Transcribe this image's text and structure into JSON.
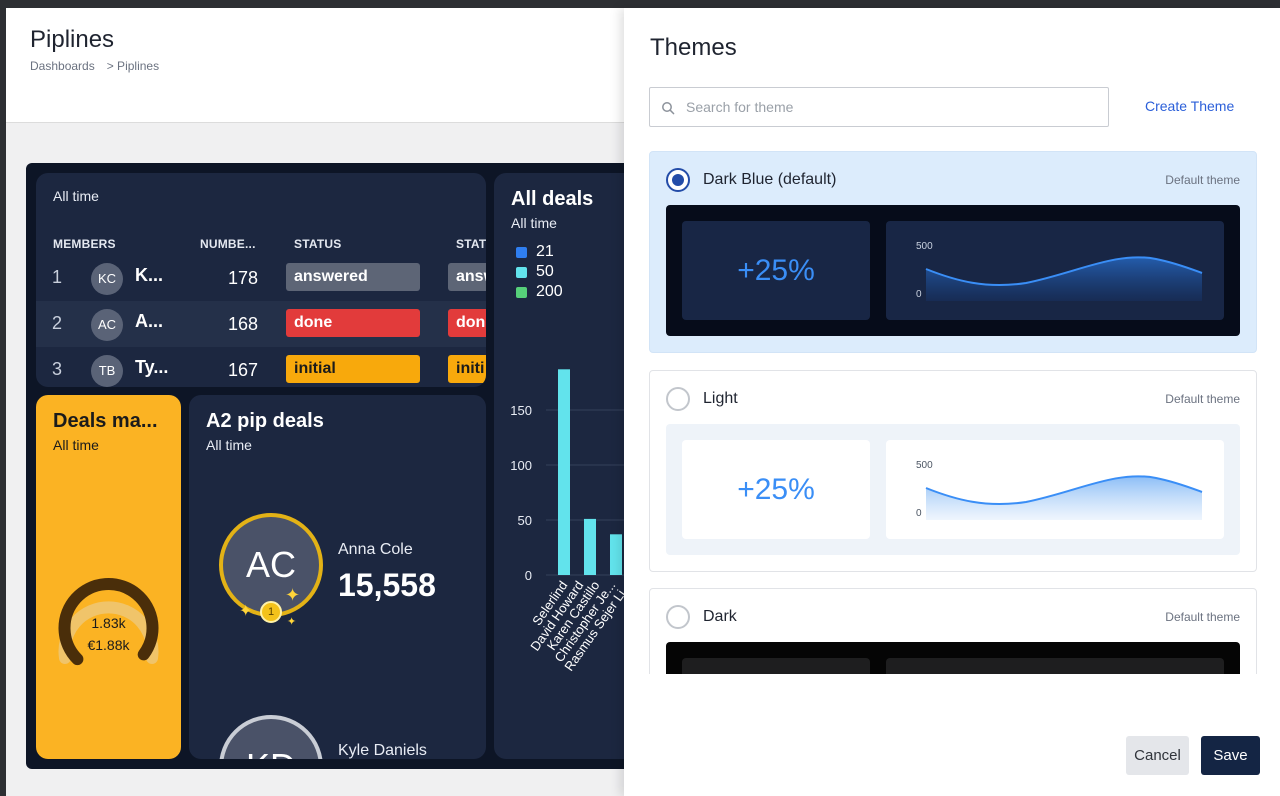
{
  "page": {
    "title": "Piplines",
    "breadcrumb": [
      "Dashboards",
      "> Piplines"
    ]
  },
  "leaderboard": {
    "subtitle": "All time",
    "headers": [
      "MEMBERS",
      "NUMBE...",
      "STATUS",
      "STAT"
    ],
    "rows": [
      {
        "rank": "1",
        "initials": "KC",
        "name": "K...",
        "number": "178",
        "status": "answered",
        "status2": "answ"
      },
      {
        "rank": "2",
        "initials": "AC",
        "name": "A...",
        "number": "168",
        "status": "done",
        "status2": "don"
      },
      {
        "rank": "3",
        "initials": "TB",
        "name": "Ty...",
        "number": "167",
        "status": "initial",
        "status2": "initi"
      }
    ]
  },
  "deals_made": {
    "title": "Deals ma...",
    "subtitle": "All time",
    "gauge_value": "1.83k",
    "gauge_money": "€1.88k",
    "gauge_fraction": 0.97
  },
  "pip_deals": {
    "title": "A2 pip deals",
    "subtitle": "All time",
    "top": {
      "initials": "AC",
      "name": "Anna Cole",
      "value": "15,558",
      "rank": "1"
    },
    "second": {
      "initials": "KD",
      "name": "Kyle Daniels"
    }
  },
  "all_deals": {
    "title": "All deals",
    "subtitle": "All time",
    "legend": [
      {
        "label": "21",
        "color": "#2f7ef0"
      },
      {
        "label": "50",
        "color": "#62e3ec"
      },
      {
        "label": "200",
        "color": "#56d07a"
      }
    ],
    "y_ticks": [
      "0",
      "50",
      "100",
      "150"
    ],
    "x_labels": [
      "Selerlind",
      "David Howard",
      "Karen Castillo",
      "Christopher Je...",
      "Rasmus Sejer Li..."
    ]
  },
  "chart_data": {
    "type": "bar",
    "categories": [
      "Selerlind",
      "David Howard",
      "Karen Castillo"
    ],
    "series": [
      {
        "name": "50",
        "values": [
          187,
          51,
          37
        ]
      }
    ],
    "ylim": [
      0,
      190
    ]
  },
  "themes_panel": {
    "title": "Themes",
    "search_placeholder": "Search for theme",
    "create_label": "Create Theme",
    "themes": [
      {
        "name": "Dark Blue (default)",
        "tag": "Default theme",
        "kpi": "+25%",
        "chart_max": "500",
        "chart_min": "0"
      },
      {
        "name": "Light",
        "tag": "Default theme",
        "kpi": "+25%",
        "chart_max": "500",
        "chart_min": "0"
      },
      {
        "name": "Dark",
        "tag": "Default theme"
      }
    ],
    "cancel_label": "Cancel",
    "save_label": "Save"
  }
}
